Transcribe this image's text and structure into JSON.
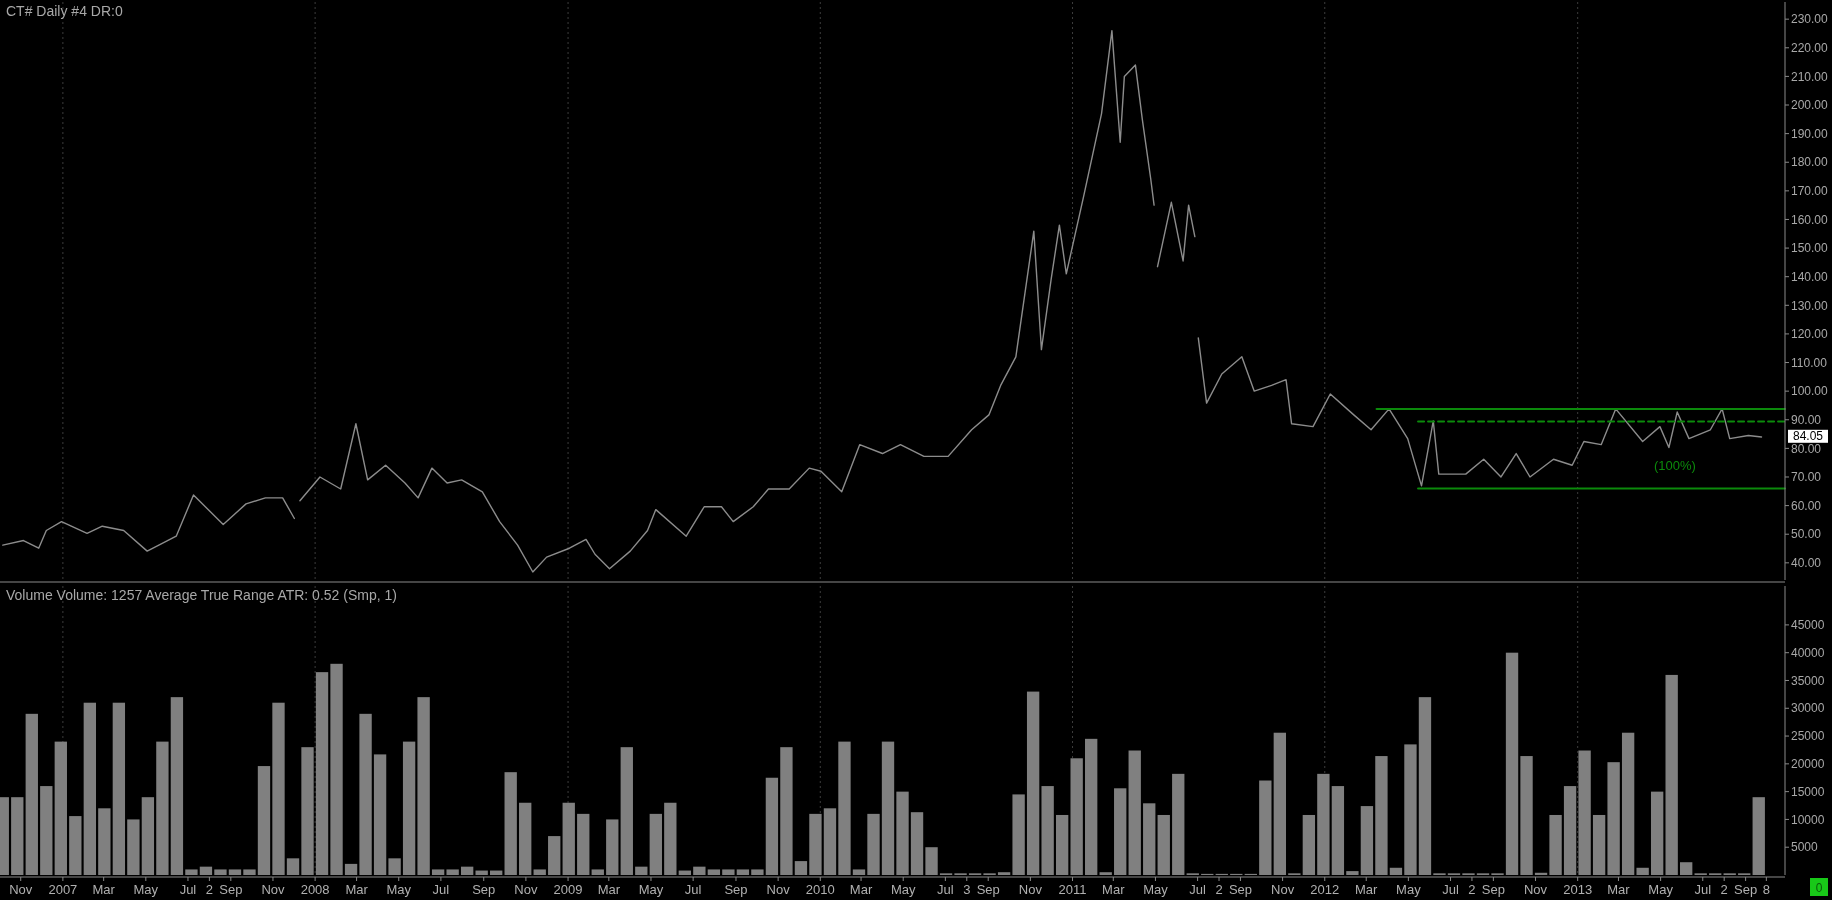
{
  "chart_data": [
    {
      "type": "line",
      "title": "CT# Daily #4 DR:0",
      "xlim": [
        "2006-10-02",
        "2013-10-28"
      ],
      "ylim": [
        34,
        236
      ],
      "tick_labels": "y",
      "yticks": [
        {
          "value": 40,
          "label": "40.00"
        },
        {
          "value": 50,
          "label": "50.00"
        },
        {
          "value": 60,
          "label": "60.00"
        },
        {
          "value": 70,
          "label": "70.00"
        },
        {
          "value": 80,
          "label": "80.00"
        },
        {
          "value": 90,
          "label": "90.00"
        },
        {
          "value": 100,
          "label": "100.00"
        },
        {
          "value": 110,
          "label": "110.00"
        },
        {
          "value": 120,
          "label": "120.00"
        },
        {
          "value": 130,
          "label": "130.00"
        },
        {
          "value": 140,
          "label": "140.00"
        },
        {
          "value": 150,
          "label": "150.00"
        },
        {
          "value": 160,
          "label": "160.00"
        },
        {
          "value": 170,
          "label": "170.00"
        },
        {
          "value": 180,
          "label": "180.00"
        },
        {
          "value": 190,
          "label": "190.00"
        },
        {
          "value": 200,
          "label": "200.00"
        },
        {
          "value": 210,
          "label": "210.00"
        },
        {
          "value": 220,
          "label": "220.00"
        },
        {
          "value": 230,
          "label": "230.00"
        }
      ],
      "x": [
        "2006-10-06",
        "2006-11-05",
        "2006-11-27",
        "2006-12-08",
        "2006-12-30",
        "2007-02-05",
        "2007-02-27",
        "2007-03-30",
        "2007-05-03",
        "2007-06-14",
        "2007-07-09",
        "2007-08-21",
        "2007-09-23",
        "2007-10-21",
        "2007-11-15",
        "2007-12-02",
        "2007-12-06",
        "2007-12-10",
        "2008-01-08",
        "2008-02-07",
        "2008-02-29",
        "2008-03-17",
        "2008-04-12",
        "2008-05-10",
        "2008-05-29",
        "2008-06-18",
        "2008-07-10",
        "2008-07-31",
        "2008-08-30",
        "2008-09-24",
        "2008-10-20",
        "2008-11-11",
        "2008-12-01",
        "2009-01-03",
        "2009-01-27",
        "2009-02-09",
        "2009-03-02",
        "2009-04-01",
        "2009-04-26",
        "2009-05-08",
        "2009-06-21",
        "2009-07-17",
        "2009-08-11",
        "2009-08-28",
        "2009-09-26",
        "2009-10-18",
        "2009-11-17",
        "2009-12-16",
        "2010-01-02",
        "2010-02-01",
        "2010-02-27",
        "2010-04-01",
        "2010-04-27",
        "2010-05-31",
        "2010-07-05",
        "2010-08-08",
        "2010-09-02",
        "2010-09-19",
        "2010-10-11",
        "2010-11-06",
        "2010-11-17",
        "2010-12-01",
        "2010-12-13",
        "2010-12-23",
        "2011-01-17",
        "2011-02-12",
        "2011-02-27",
        "2011-03-11",
        "2011-03-17",
        "2011-04-02",
        "2011-04-12",
        "2011-04-24",
        "2011-04-29",
        "2011-05-01",
        "2011-05-04",
        "2011-05-24",
        "2011-06-10",
        "2011-06-18",
        "2011-06-27",
        "2011-06-30",
        "2011-07-02",
        "2011-07-14",
        "2011-08-05",
        "2011-09-03",
        "2011-09-21",
        "2011-10-16",
        "2011-11-06",
        "2011-11-14",
        "2011-12-15",
        "2012-01-09",
        "2012-02-12",
        "2012-03-08",
        "2012-04-03",
        "2012-04-30",
        "2012-05-20",
        "2012-06-06",
        "2012-06-14",
        "2012-07-23",
        "2012-08-18",
        "2012-09-12",
        "2012-10-04",
        "2012-10-24",
        "2012-11-27",
        "2012-12-24",
        "2013-01-10",
        "2013-02-04",
        "2013-02-25",
        "2013-04-05",
        "2013-04-30",
        "2013-05-13",
        "2013-05-25",
        "2013-06-11",
        "2013-07-12",
        "2013-07-29",
        "2013-08-09",
        "2013-09-05",
        "2013-09-24"
      ],
      "series": [
        {
          "color": "#8c8c8c",
          "values": [
            46.2,
            47.8,
            45.1,
            51.3,
            54.4,
            50.3,
            52.8,
            51.3,
            44.1,
            49.3,
            63.7,
            53.4,
            60.6,
            62.7,
            62.7,
            55.5,
            null,
            61.7,
            70.0,
            65.8,
            88.6,
            69.0,
            74.1,
            67.9,
            62.7,
            73.1,
            67.9,
            69.0,
            64.8,
            54.4,
            46.2,
            36.8,
            42.0,
            45.1,
            48.2,
            43.0,
            37.9,
            44.1,
            51.3,
            58.6,
            49.3,
            59.6,
            59.6,
            54.4,
            59.6,
            65.8,
            65.8,
            73.1,
            72.0,
            64.8,
            81.3,
            78.2,
            81.3,
            77.2,
            77.2,
            86.5,
            91.7,
            102,
            112,
            155.9,
            114.5,
            139,
            158,
            141,
            168,
            197,
            226,
            187,
            210,
            214,
            195,
            174.5,
            165,
            null,
            143.5,
            166,
            145.5,
            165,
            154,
            null,
            118.6,
            95.8,
            106,
            112,
            100,
            102,
            104,
            88.6,
            87.6,
            99,
            91.7,
            86.5,
            93.8,
            83.4,
            66.9,
            89.6,
            71,
            71,
            76.2,
            70,
            78.2,
            70,
            76.2,
            74.1,
            82.4,
            81.3,
            93.8,
            82.4,
            87.6,
            80.3,
            92.7,
            83.4,
            86.5,
            93.8,
            83.4,
            84.5,
            84
          ]
        },
        {
          "type": "line",
          "color": "#0b8a0b",
          "line_style": "solid",
          "x": [
            "2012-03-16",
            "2013-10-28"
          ],
          "values": [
            93.8,
            93.8
          ]
        },
        {
          "type": "line",
          "color": "#0b8a0b",
          "line_style": "dashed",
          "x": [
            "2012-05-15",
            "2013-10-28"
          ],
          "values": [
            89.4,
            89.4
          ]
        },
        {
          "type": "line",
          "color": "#0b8a0b",
          "line_style": "solid",
          "x": [
            "2012-05-15",
            "2013-10-28"
          ],
          "values": [
            66,
            66
          ]
        }
      ],
      "ref_lines": [
        {
          "axis": "x",
          "value": "2007-01-01",
          "color": "#3c3c3c",
          "line_style": "dotted"
        },
        {
          "axis": "x",
          "value": "2008-01-01",
          "color": "#3c3c3c",
          "line_style": "dotted"
        },
        {
          "axis": "x",
          "value": "2009-01-01",
          "color": "#3c3c3c",
          "line_style": "dotted"
        },
        {
          "axis": "x",
          "value": "2010-01-01",
          "color": "#3c3c3c",
          "line_style": "dotted"
        },
        {
          "axis": "x",
          "value": "2011-01-01",
          "color": "#3c3c3c",
          "line_style": "dotted"
        },
        {
          "axis": "x",
          "value": "2012-01-01",
          "color": "#3c3c3c",
          "line_style": "dotted"
        },
        {
          "axis": "x",
          "value": "2013-01-01",
          "color": "#3c3c3c",
          "line_style": "dotted"
        }
      ],
      "annotations": [
        "(100%)",
        {
          "text": "84.05",
          "y": 84.05
        }
      ]
    },
    {
      "type": "bar",
      "title": "Volume Volume: 1257 Average True Range ATR: 0.52 (Smp, 1)",
      "xlim": [
        "2006-10-02",
        "2013-10-28"
      ],
      "ylim": [
        0,
        52000
      ],
      "yticks": [
        5000,
        10000,
        15000,
        20000,
        25000,
        30000,
        35000,
        40000,
        45000
      ],
      "xticks": [
        {
          "value": "2006-11-01",
          "label": "Nov"
        },
        {
          "value": "2007-01-01",
          "label": "2007"
        },
        {
          "value": "2007-03-01",
          "label": "Mar"
        },
        {
          "value": "2007-05-01",
          "label": "May"
        },
        {
          "value": "2007-07-01",
          "label": "Jul"
        },
        {
          "value": "2007-08-01",
          "label": "2"
        },
        {
          "value": "2007-09-01",
          "label": "Sep"
        },
        {
          "value": "2007-11-01",
          "label": "Nov"
        },
        {
          "value": "2008-01-01",
          "label": "2008"
        },
        {
          "value": "2008-03-01",
          "label": "Mar"
        },
        {
          "value": "2008-05-01",
          "label": "May"
        },
        {
          "value": "2008-07-01",
          "label": "Jul"
        },
        {
          "value": "2008-09-01",
          "label": "Sep"
        },
        {
          "value": "2008-11-01",
          "label": "Nov"
        },
        {
          "value": "2009-01-01",
          "label": "2009"
        },
        {
          "value": "2009-03-01",
          "label": "Mar"
        },
        {
          "value": "2009-05-01",
          "label": "May"
        },
        {
          "value": "2009-07-01",
          "label": "Jul"
        },
        {
          "value": "2009-09-01",
          "label": "Sep"
        },
        {
          "value": "2009-11-01",
          "label": "Nov"
        },
        {
          "value": "2010-01-01",
          "label": "2010"
        },
        {
          "value": "2010-03-01",
          "label": "Mar"
        },
        {
          "value": "2010-05-01",
          "label": "May"
        },
        {
          "value": "2010-07-01",
          "label": "Jul"
        },
        {
          "value": "2010-08-01",
          "label": "3"
        },
        {
          "value": "2010-09-01",
          "label": "Sep"
        },
        {
          "value": "2010-11-01",
          "label": "Nov"
        },
        {
          "value": "2011-01-01",
          "label": "2011"
        },
        {
          "value": "2011-03-01",
          "label": "Mar"
        },
        {
          "value": "2011-05-01",
          "label": "May"
        },
        {
          "value": "2011-07-01",
          "label": "Jul"
        },
        {
          "value": "2011-08-01",
          "label": "2"
        },
        {
          "value": "2011-09-01",
          "label": "Sep"
        },
        {
          "value": "2011-11-01",
          "label": "Nov"
        },
        {
          "value": "2012-01-01",
          "label": "2012"
        },
        {
          "value": "2012-03-01",
          "label": "Mar"
        },
        {
          "value": "2012-05-01",
          "label": "May"
        },
        {
          "value": "2012-07-01",
          "label": "Jul"
        },
        {
          "value": "2012-08-01",
          "label": "2"
        },
        {
          "value": "2012-09-01",
          "label": "Sep"
        },
        {
          "value": "2012-11-01",
          "label": "Nov"
        },
        {
          "value": "2013-01-01",
          "label": "2013"
        },
        {
          "value": "2013-03-01",
          "label": "Mar"
        },
        {
          "value": "2013-05-01",
          "label": "May"
        },
        {
          "value": "2013-07-01",
          "label": "Jul"
        },
        {
          "value": "2013-08-01",
          "label": "2"
        },
        {
          "value": "2013-09-01",
          "label": "Sep"
        },
        {
          "value": "2013-10-01",
          "label": "8"
        }
      ],
      "x": [
        "2006-10-06",
        "2006-10-27",
        "2006-11-17",
        "2006-12-08",
        "2006-12-29",
        "2007-01-19",
        "2007-02-09",
        "2007-03-02",
        "2007-03-23",
        "2007-04-13",
        "2007-05-04",
        "2007-05-25",
        "2007-06-15",
        "2007-07-06",
        "2007-07-27",
        "2007-08-17",
        "2007-09-07",
        "2007-09-28",
        "2007-10-19",
        "2007-11-09",
        "2007-11-30",
        "2007-12-21",
        "2008-01-11",
        "2008-02-01",
        "2008-02-22",
        "2008-03-14",
        "2008-04-04",
        "2008-04-25",
        "2008-05-16",
        "2008-06-06",
        "2008-06-27",
        "2008-07-18",
        "2008-08-08",
        "2008-08-29",
        "2008-09-19",
        "2008-10-10",
        "2008-10-31",
        "2008-11-21",
        "2008-12-12",
        "2009-01-02",
        "2009-01-23",
        "2009-02-13",
        "2009-03-06",
        "2009-03-27",
        "2009-04-17",
        "2009-05-08",
        "2009-05-29",
        "2009-06-19",
        "2009-07-10",
        "2009-07-31",
        "2009-08-21",
        "2009-09-11",
        "2009-10-02",
        "2009-10-23",
        "2009-11-13",
        "2009-12-04",
        "2009-12-25",
        "2010-01-15",
        "2010-02-05",
        "2010-02-26",
        "2010-03-19",
        "2010-04-09",
        "2010-04-30",
        "2010-05-21",
        "2010-06-11",
        "2010-07-02",
        "2010-07-23",
        "2010-08-13",
        "2010-09-03",
        "2010-09-24",
        "2010-10-15",
        "2010-11-05",
        "2010-11-26",
        "2010-12-17",
        "2011-01-07",
        "2011-01-28",
        "2011-02-18",
        "2011-03-11",
        "2011-04-01",
        "2011-04-22",
        "2011-05-13",
        "2011-06-03",
        "2011-06-24",
        "2011-07-15",
        "2011-08-05",
        "2011-08-26",
        "2011-09-16",
        "2011-10-07",
        "2011-10-28",
        "2011-11-18",
        "2011-12-09",
        "2011-12-30",
        "2012-01-20",
        "2012-02-10",
        "2012-03-02",
        "2012-03-23",
        "2012-04-13",
        "2012-05-04",
        "2012-05-25",
        "2012-06-15",
        "2012-07-06",
        "2012-07-27",
        "2012-08-17",
        "2012-09-07",
        "2012-09-28",
        "2012-10-19",
        "2012-11-09",
        "2012-11-30",
        "2012-12-21",
        "2013-01-11",
        "2013-02-01",
        "2013-02-22",
        "2013-03-15",
        "2013-04-05",
        "2013-04-26",
        "2013-05-17",
        "2013-06-07",
        "2013-06-28",
        "2013-07-19",
        "2013-08-09",
        "2013-08-30",
        "2013-09-20"
      ],
      "series": [
        {
          "color": "#808080",
          "values": [
            14000,
            14000,
            29000,
            16000,
            24000,
            10600,
            31000,
            12000,
            31000,
            10000,
            14000,
            24000,
            32000,
            1000,
            1500,
            1000,
            1000,
            1000,
            19600,
            31000,
            3000,
            23000,
            36500,
            38000,
            2000,
            29000,
            21700,
            3000,
            24000,
            32000,
            1000,
            1000,
            1500,
            800,
            800,
            18500,
            13000,
            1000,
            7000,
            13000,
            11000,
            1000,
            10000,
            23000,
            1500,
            11000,
            13000,
            800,
            1500,
            1000,
            1000,
            1000,
            1000,
            17500,
            23000,
            2500,
            11000,
            12000,
            24000,
            1000,
            11000,
            24000,
            15000,
            11300,
            5000,
            300,
            300,
            300,
            300,
            500,
            14500,
            33000,
            16000,
            10800,
            21000,
            24500,
            500,
            15600,
            22400,
            12900,
            10800,
            18200,
            300,
            200,
            200,
            200,
            200,
            17000,
            25600,
            300,
            10800,
            18200,
            16000,
            700,
            12400,
            21400,
            1300,
            23500,
            32000,
            300,
            300,
            300,
            300,
            300,
            40000,
            21400,
            400,
            10800,
            16000,
            22400,
            10800,
            20300,
            25600,
            1300,
            15000,
            36000,
            2300,
            300,
            300,
            300,
            300,
            14000
          ]
        }
      ],
      "ref_lines": [
        {
          "axis": "x",
          "value": "2007-01-01",
          "color": "#3c3c3c",
          "line_style": "dotted"
        },
        {
          "axis": "x",
          "value": "2008-01-01",
          "color": "#3c3c3c",
          "line_style": "dotted"
        },
        {
          "axis": "x",
          "value": "2009-01-01",
          "color": "#3c3c3c",
          "line_style": "dotted"
        },
        {
          "axis": "x",
          "value": "2010-01-01",
          "color": "#3c3c3c",
          "line_style": "dotted"
        },
        {
          "axis": "x",
          "value": "2011-01-01",
          "color": "#3c3c3c",
          "line_style": "dotted"
        },
        {
          "axis": "x",
          "value": "2012-01-01",
          "color": "#3c3c3c",
          "line_style": "dotted"
        },
        {
          "axis": "x",
          "value": "2013-01-01",
          "color": "#3c3c3c",
          "line_style": "dotted"
        }
      ],
      "annotations": [
        "0"
      ]
    }
  ]
}
